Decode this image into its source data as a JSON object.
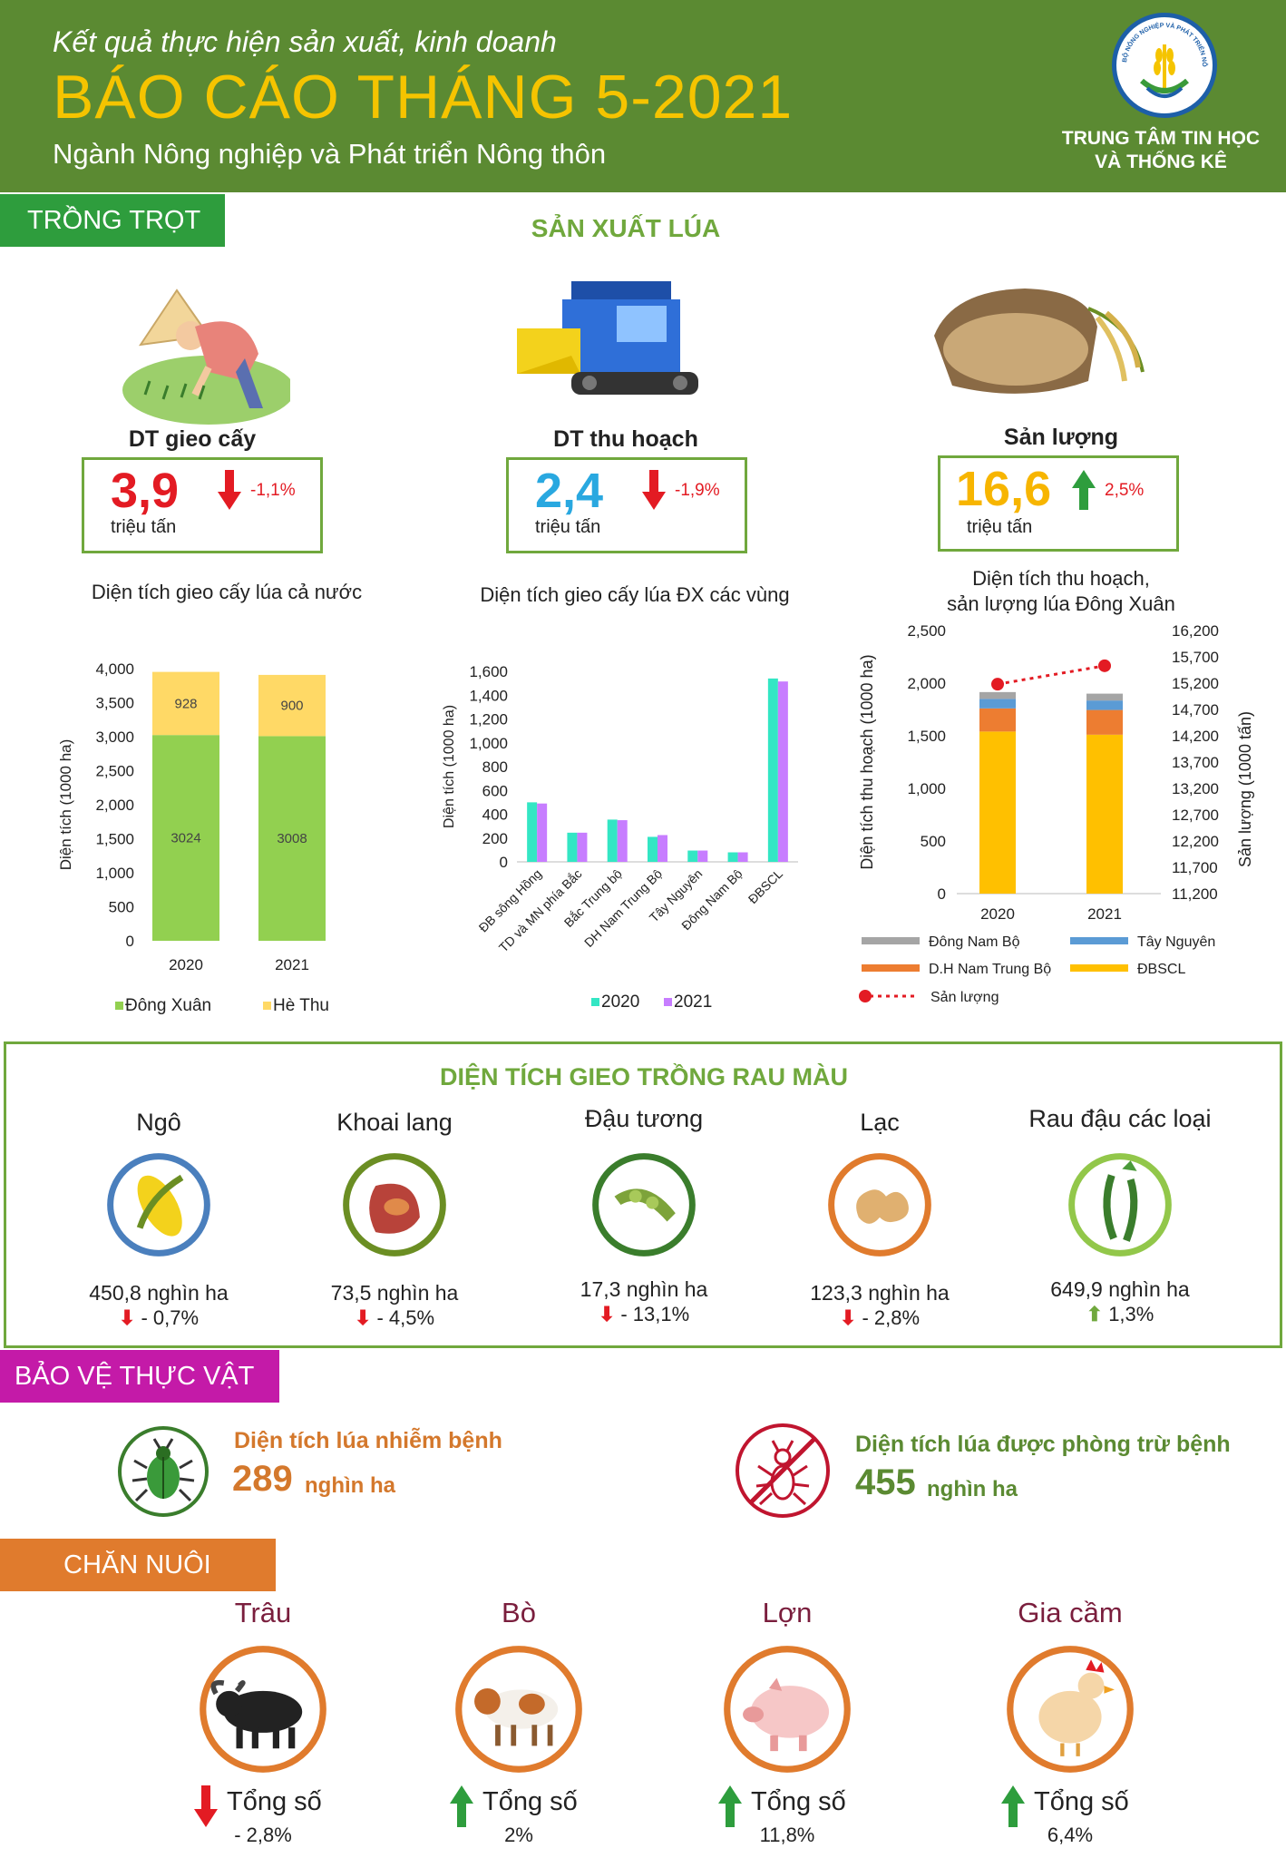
{
  "header": {
    "subtitle": "Kết quả thực hiện sản xuất, kinh doanh",
    "title": "BÁO CÁO THÁNG 5-2021",
    "sector": "Ngành Nông nghiệp và Phát triển Nông thôn",
    "org_line1": "TRUNG TÂM TIN HỌC",
    "org_line2": "VÀ THỐNG KÊ",
    "logo_ring_text": "BỘ NÔNG NGHIỆP VÀ PHÁT TRIỂN NÔNG THÔN"
  },
  "crops": {
    "section_label": "TRỒNG TRỌT",
    "rice_title": "SẢN XUẤT LÚA",
    "kpis": [
      {
        "label": "DT gieo cấy",
        "value": "3,9",
        "unit": "triệu tấn",
        "pct": "-1,1%",
        "dir": "down",
        "color": "#e31b23"
      },
      {
        "label": "DT thu hoạch",
        "value": "2,4",
        "unit": "triệu tấn",
        "pct": "-1,9%",
        "dir": "down",
        "color": "#29a8e0"
      },
      {
        "label": "Sản lượng",
        "value": "16,6",
        "unit": "triệu tấn",
        "pct": "2,5%",
        "dir": "up",
        "color": "#f7b500"
      }
    ]
  },
  "chart_data": [
    {
      "type": "bar",
      "title": "Diện tích gieo cấy lúa cả nước",
      "ylabel": "Diện tích (1000 ha)",
      "categories": [
        "2020",
        "2021"
      ],
      "series": [
        {
          "name": "Đông Xuân",
          "values": [
            3024,
            3008
          ],
          "color": "#92d050"
        },
        {
          "name": "Hè Thu",
          "values": [
            928,
            900
          ],
          "color": "#ffd966"
        }
      ],
      "ylim": [
        0,
        4000
      ],
      "yticks": [
        "0",
        "500",
        "1,000",
        "1,500",
        "2,000",
        "2,500",
        "3,000",
        "3,500",
        "4,000"
      ],
      "labels": [
        "3024",
        "3008",
        "928",
        "900"
      ],
      "stacked": true
    },
    {
      "type": "bar",
      "title": "Diện tích gieo cấy lúa ĐX các vùng",
      "ylabel": "Diện tích (1000 ha)",
      "categories": [
        "ĐB sông Hồng",
        "TD và MN phía Bắc",
        "Bắc Trung bộ",
        "DH Nam Trung Bộ",
        "Tây Nguyên",
        "Đông Nam Bộ",
        "ĐBSCL"
      ],
      "series": [
        {
          "name": "2020",
          "values": [
            500,
            245,
            355,
            210,
            95,
            80,
            1540
          ],
          "color": "#33e6c4"
        },
        {
          "name": "2021",
          "values": [
            490,
            245,
            350,
            225,
            95,
            80,
            1515
          ],
          "color": "#c77dff"
        }
      ],
      "ylim": [
        0,
        1600
      ],
      "yticks": [
        "0",
        "200",
        "400",
        "600",
        "800",
        "1,000",
        "1,200",
        "1,400",
        "1,600"
      ]
    },
    {
      "type": "bar",
      "title_line1": "Diện tích thu hoạch,",
      "title_line2": "sản lượng lúa Đông Xuân",
      "ylabel": "Diện tích thu hoạch (1000 ha)",
      "y2label": "Sản lượng (1000 tấn)",
      "categories": [
        "2020",
        "2021"
      ],
      "series": [
        {
          "name": "ĐBSCL",
          "values": [
            1540,
            1510
          ],
          "color": "#ffc000"
        },
        {
          "name": "D.H Nam Trung Bộ",
          "values": [
            220,
            235
          ],
          "color": "#ed7d31"
        },
        {
          "name": "Tây Nguyên",
          "values": [
            90,
            90
          ],
          "color": "#5b9bd5"
        },
        {
          "name": "Đông Nam Bộ",
          "values": [
            65,
            65
          ],
          "color": "#a5a5a5"
        }
      ],
      "line": {
        "name": "Sản lượng",
        "values": [
          15180,
          15530
        ],
        "color": "#e31b23"
      },
      "ylim": [
        0,
        2500
      ],
      "y2lim": [
        11200,
        16200
      ],
      "yticks": [
        "0",
        "500",
        "1,000",
        "1,500",
        "2,000",
        "2,500"
      ],
      "y2ticks": [
        "11,200",
        "11,700",
        "12,200",
        "12,700",
        "13,200",
        "13,700",
        "14,200",
        "14,700",
        "15,200",
        "15,700",
        "16,200"
      ],
      "legend_order": [
        "Đông Nam Bộ",
        "Tây Nguyên",
        "D.H Nam Trung Bộ",
        "ĐBSCL",
        "Sản lượng"
      ]
    }
  ],
  "vegetables": {
    "title": "DIỆN TÍCH GIEO TRỒNG RAU MÀU",
    "items": [
      {
        "name": "Ngô",
        "value": "450,8 nghìn ha",
        "pct": "- 0,7%",
        "dir": "down",
        "ring": "#4a7fbd"
      },
      {
        "name": "Khoai lang",
        "value": "73,5 nghìn ha",
        "pct": "- 4,5%",
        "dir": "down",
        "ring": "#6b8e23"
      },
      {
        "name": "Đậu tương",
        "value": "17,3 nghìn ha",
        "pct": "- 13,1%",
        "dir": "down",
        "ring": "#3a7d2c"
      },
      {
        "name": "Lạc",
        "value": "123,3 nghìn ha",
        "pct": "- 2,8%",
        "dir": "down",
        "ring": "#e07b2d"
      },
      {
        "name": "Rau đậu các loại",
        "value": "649,9 nghìn ha",
        "pct": "1,3%",
        "dir": "up",
        "ring": "#92c74a"
      }
    ]
  },
  "plant_protection": {
    "section_label": "BẢO VỆ THỰC VẬT",
    "infected_label": "Diện tích lúa nhiễm bệnh",
    "infected_value": "289",
    "infected_unit": "nghìn ha",
    "treated_label": "Diện tích lúa được phòng trừ bệnh",
    "treated_value": "455",
    "treated_unit": "nghìn ha"
  },
  "livestock": {
    "section_label": "CHĂN NUÔI",
    "total_label": "Tổng số",
    "items": [
      {
        "name": "Trâu",
        "pct": "- 2,8%",
        "dir": "down"
      },
      {
        "name": "Bò",
        "pct": "2%",
        "dir": "up"
      },
      {
        "name": "Lợn",
        "pct": "11,8%",
        "dir": "up"
      },
      {
        "name": "Gia cầm",
        "pct": "6,4%",
        "dir": "up"
      }
    ]
  }
}
